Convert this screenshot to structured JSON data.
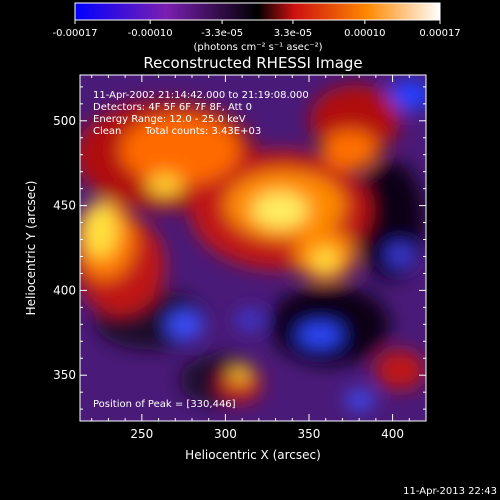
{
  "title": "Reconstructed RHESSI Image",
  "colorbar": {
    "tick_labels": [
      "-0.00017",
      "-0.00010",
      "-3.3e-05",
      "3.3e-05",
      "0.00010",
      "0.00017"
    ],
    "tick_values": [
      -0.00017,
      -0.0001,
      -3.3e-05,
      3.3e-05,
      0.0001,
      0.00017
    ],
    "range": [
      -0.00017,
      0.00017
    ],
    "units_label": "(photons cm⁻² s⁻¹ asec⁻²)",
    "colors": [
      "#0000ff",
      "#7a1fb0",
      "#000000",
      "#cc1010",
      "#ff8800",
      "#ffffff"
    ]
  },
  "info": {
    "line1": "11-Apr-2002 21:14:42.000 to 21:19:08.000",
    "line2": "Detectors: 4F 5F 6F 7F 8F, Att 0",
    "line3": "Energy Range: 12.0 - 25.0 keV",
    "line4_left": "Clean",
    "line4_right": "Total counts: 3.43E+03"
  },
  "peak_label": "Position of Peak = [330,446]",
  "peak": {
    "x": 330,
    "y": 446
  },
  "axes": {
    "xlabel": "Heliocentric X (arcsec)",
    "ylabel": "Heliocentric Y (arcsec)",
    "xlim": [
      213,
      420
    ],
    "ylim": [
      323,
      527
    ],
    "xticks": [
      250,
      300,
      350,
      400
    ],
    "yticks": [
      350,
      400,
      450,
      500
    ]
  },
  "footer_timestamp": "11-Apr-2013 22:43"
}
